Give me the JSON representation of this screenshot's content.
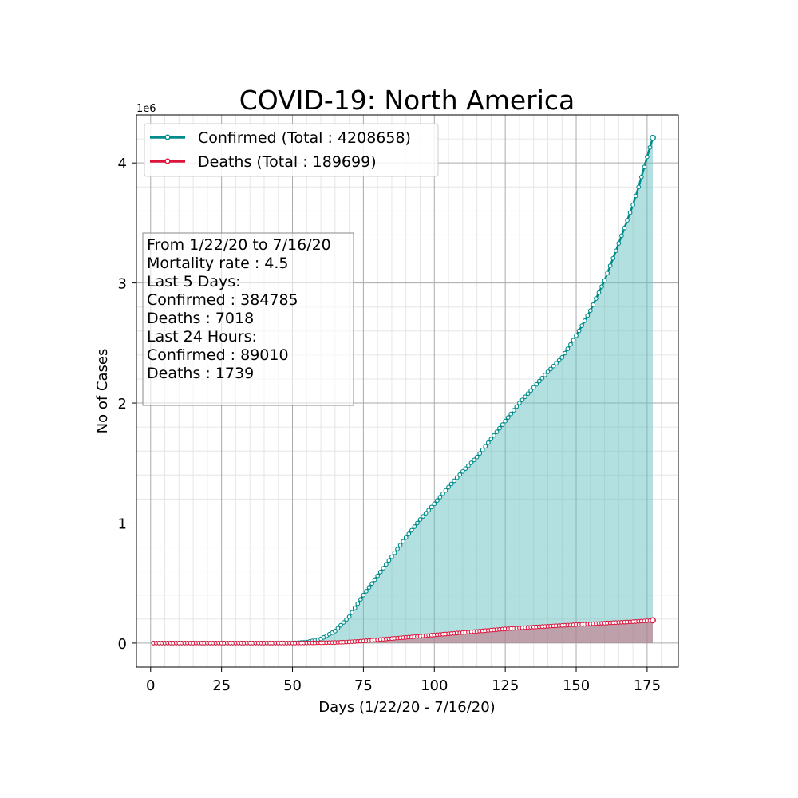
{
  "chart_data": {
    "type": "line",
    "title": "COVID-19: North America",
    "xlabel": "Days (1/22/20 - 7/16/20)",
    "ylabel": "No of Cases",
    "y_offset_label": "1e6",
    "xlim": [
      -5,
      186
    ],
    "ylim": [
      -200000,
      4400000
    ],
    "x_ticks": [
      0,
      25,
      50,
      75,
      100,
      125,
      150,
      175
    ],
    "y_ticks": [
      0,
      1000000,
      2000000,
      3000000,
      4000000
    ],
    "y_tick_labels": [
      "0",
      "1",
      "2",
      "3",
      "4"
    ],
    "grid": true,
    "minor_grid": true,
    "legend_position": "top-left",
    "info_box": {
      "lines": [
        "From 1/22/20 to 7/16/20",
        "Mortality rate : 4.5",
        "Last 5 Days:",
        "Confirmed : 384785",
        "Deaths : 7018",
        "Last 24 Hours:",
        "Confirmed : 89010",
        "Deaths : 1739"
      ]
    },
    "series": [
      {
        "name": "Confirmed (Total : 4208658)",
        "color": "#008b8b",
        "fill_color": "#66bfbf",
        "x_range": [
          1,
          177
        ],
        "knots": [
          [
            1,
            0
          ],
          [
            40,
            0
          ],
          [
            50,
            1000
          ],
          [
            55,
            8000
          ],
          [
            60,
            35000
          ],
          [
            65,
            100000
          ],
          [
            70,
            220000
          ],
          [
            75,
            400000
          ],
          [
            80,
            560000
          ],
          [
            85,
            720000
          ],
          [
            90,
            880000
          ],
          [
            95,
            1030000
          ],
          [
            100,
            1160000
          ],
          [
            105,
            1300000
          ],
          [
            110,
            1430000
          ],
          [
            115,
            1550000
          ],
          [
            120,
            1700000
          ],
          [
            125,
            1850000
          ],
          [
            130,
            2000000
          ],
          [
            135,
            2130000
          ],
          [
            140,
            2260000
          ],
          [
            145,
            2380000
          ],
          [
            150,
            2560000
          ],
          [
            155,
            2770000
          ],
          [
            160,
            3020000
          ],
          [
            165,
            3330000
          ],
          [
            170,
            3650000
          ],
          [
            172,
            3800000
          ],
          [
            175,
            4050000
          ],
          [
            177,
            4208658
          ]
        ]
      },
      {
        "name": "Deaths (Total : 189699)",
        "color": "#dc143c",
        "fill_color": "#c96b7e",
        "x_range": [
          1,
          177
        ],
        "knots": [
          [
            1,
            0
          ],
          [
            50,
            0
          ],
          [
            55,
            1000
          ],
          [
            60,
            3000
          ],
          [
            65,
            5000
          ],
          [
            70,
            10000
          ],
          [
            75,
            18000
          ],
          [
            80,
            28000
          ],
          [
            85,
            38000
          ],
          [
            90,
            48000
          ],
          [
            95,
            58000
          ],
          [
            100,
            68000
          ],
          [
            105,
            78000
          ],
          [
            110,
            88000
          ],
          [
            115,
            98000
          ],
          [
            120,
            108000
          ],
          [
            125,
            118000
          ],
          [
            130,
            126000
          ],
          [
            135,
            133000
          ],
          [
            140,
            140000
          ],
          [
            145,
            147000
          ],
          [
            150,
            154000
          ],
          [
            155,
            160000
          ],
          [
            160,
            166000
          ],
          [
            165,
            172000
          ],
          [
            170,
            178000
          ],
          [
            175,
            186000
          ],
          [
            177,
            189699
          ]
        ]
      }
    ]
  }
}
